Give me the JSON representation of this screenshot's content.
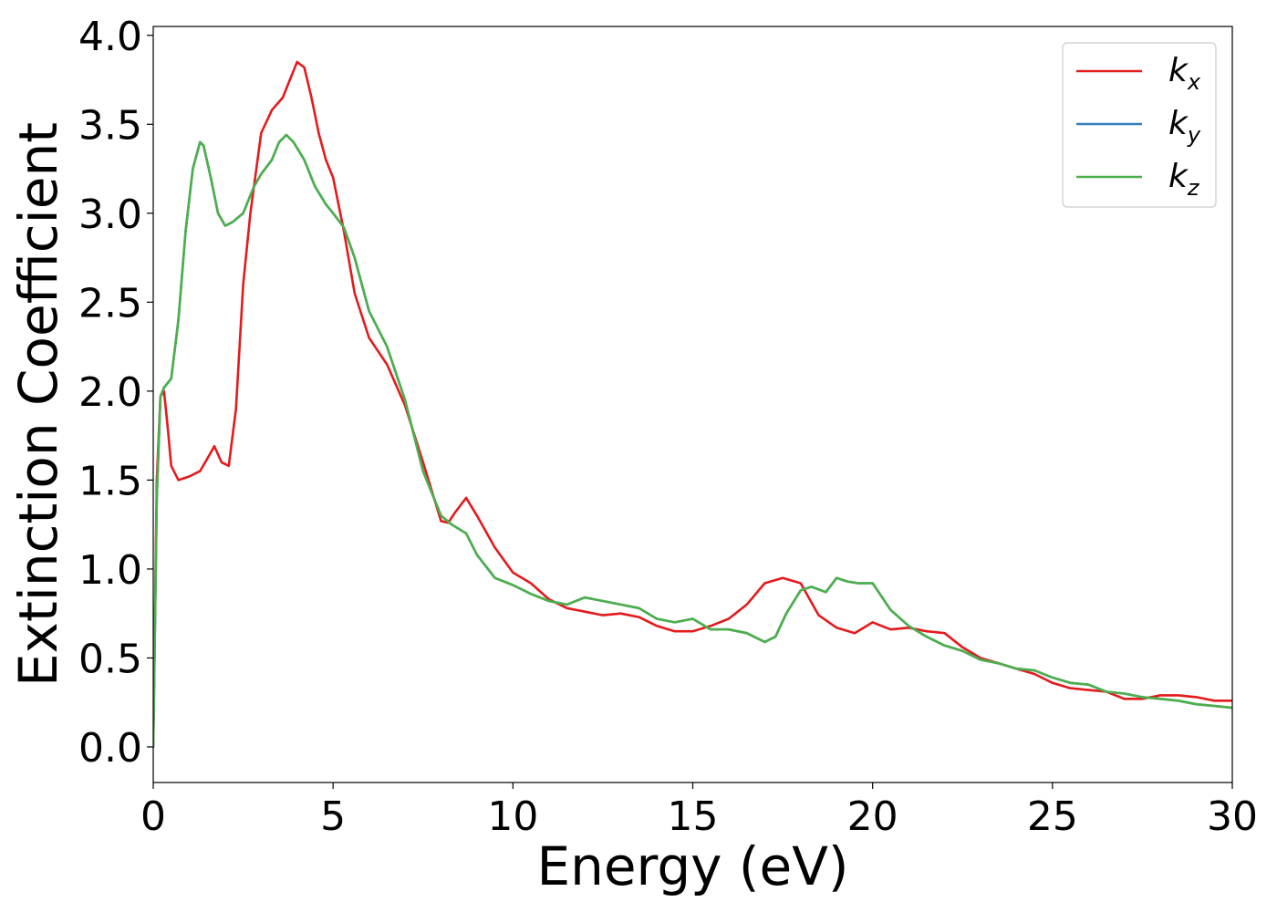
{
  "chart_data": {
    "type": "line",
    "xlabel": "Energy (eV)",
    "ylabel": "Extinction Coefficient",
    "xlim": [
      0,
      30
    ],
    "ylim": [
      -0.2,
      4.05
    ],
    "xticks": [
      0,
      5,
      10,
      15,
      20,
      25,
      30
    ],
    "yticks": [
      0.0,
      0.5,
      1.0,
      1.5,
      2.0,
      2.5,
      3.0,
      3.5,
      4.0
    ],
    "xtick_labels": [
      "0",
      "5",
      "10",
      "15",
      "20",
      "25",
      "30"
    ],
    "ytick_labels": [
      "0.0",
      "0.5",
      "1.0",
      "1.5",
      "2.0",
      "2.5",
      "3.0",
      "3.5",
      "4.0"
    ],
    "grid": false,
    "legend_position": "top-right",
    "series": [
      {
        "name": "k",
        "sub": "x",
        "color": "#e41a1c",
        "x": [
          0,
          0.1,
          0.2,
          0.3,
          0.4,
          0.5,
          0.7,
          1.0,
          1.3,
          1.5,
          1.7,
          1.9,
          2.1,
          2.3,
          2.5,
          2.7,
          3.0,
          3.3,
          3.6,
          3.8,
          4.0,
          4.2,
          4.4,
          4.6,
          4.8,
          5.0,
          5.3,
          5.6,
          6.0,
          6.5,
          7.0,
          7.5,
          8.0,
          8.2,
          8.4,
          8.7,
          9.0,
          9.5,
          10.0,
          10.5,
          11.0,
          11.5,
          12.0,
          12.5,
          13.0,
          13.5,
          14.0,
          14.5,
          15.0,
          15.5,
          16.0,
          16.5,
          17.0,
          17.5,
          18.0,
          18.5,
          19.0,
          19.5,
          20.0,
          20.5,
          21.0,
          21.5,
          22.0,
          22.5,
          23.0,
          23.5,
          24.0,
          24.5,
          25.0,
          25.5,
          26.0,
          26.5,
          27.0,
          27.5,
          28.0,
          28.5,
          29.0,
          29.5,
          30.0
        ],
        "y": [
          0.0,
          1.5,
          1.97,
          2.0,
          1.8,
          1.58,
          1.5,
          1.52,
          1.55,
          1.62,
          1.69,
          1.6,
          1.58,
          1.9,
          2.6,
          3.0,
          3.45,
          3.58,
          3.65,
          3.75,
          3.85,
          3.82,
          3.65,
          3.45,
          3.3,
          3.2,
          2.9,
          2.55,
          2.3,
          2.15,
          1.92,
          1.6,
          1.27,
          1.26,
          1.32,
          1.4,
          1.3,
          1.12,
          0.98,
          0.92,
          0.83,
          0.78,
          0.76,
          0.74,
          0.75,
          0.73,
          0.68,
          0.65,
          0.65,
          0.68,
          0.72,
          0.8,
          0.92,
          0.95,
          0.92,
          0.74,
          0.67,
          0.64,
          0.7,
          0.66,
          0.67,
          0.65,
          0.64,
          0.56,
          0.5,
          0.47,
          0.44,
          0.41,
          0.36,
          0.33,
          0.32,
          0.31,
          0.27,
          0.27,
          0.29,
          0.29,
          0.28,
          0.26,
          0.26
        ]
      },
      {
        "name": "k",
        "sub": "y",
        "color": "#377eb8",
        "x": [
          0,
          0.1,
          0.2,
          0.3,
          0.5,
          0.7,
          0.9,
          1.1,
          1.3,
          1.4,
          1.6,
          1.8,
          2.0,
          2.2,
          2.5,
          2.8,
          3.0,
          3.3,
          3.5,
          3.7,
          3.9,
          4.2,
          4.5,
          4.8,
          5.0,
          5.3,
          5.6,
          6.0,
          6.5,
          7.0,
          7.5,
          8.0,
          8.3,
          8.7,
          9.0,
          9.5,
          10.0,
          10.5,
          11.0,
          11.5,
          12.0,
          12.5,
          13.0,
          13.5,
          14.0,
          14.5,
          15.0,
          15.5,
          16.0,
          16.5,
          17.0,
          17.3,
          17.6,
          18.0,
          18.3,
          18.7,
          19.0,
          19.3,
          19.6,
          20.0,
          20.5,
          21.0,
          21.5,
          22.0,
          22.5,
          23.0,
          23.5,
          24.0,
          24.5,
          25.0,
          25.5,
          26.0,
          26.5,
          27.0,
          27.5,
          28.0,
          28.5,
          29.0,
          29.5,
          30.0
        ],
        "y": [
          0.0,
          1.4,
          1.97,
          2.02,
          2.07,
          2.4,
          2.9,
          3.25,
          3.4,
          3.38,
          3.2,
          3.0,
          2.93,
          2.95,
          3.0,
          3.15,
          3.22,
          3.3,
          3.4,
          3.44,
          3.4,
          3.3,
          3.15,
          3.05,
          3.0,
          2.92,
          2.75,
          2.45,
          2.25,
          1.95,
          1.55,
          1.3,
          1.25,
          1.2,
          1.08,
          0.95,
          0.91,
          0.86,
          0.82,
          0.8,
          0.84,
          0.82,
          0.8,
          0.78,
          0.72,
          0.7,
          0.72,
          0.66,
          0.66,
          0.64,
          0.59,
          0.62,
          0.75,
          0.88,
          0.9,
          0.87,
          0.95,
          0.93,
          0.92,
          0.92,
          0.77,
          0.68,
          0.62,
          0.57,
          0.54,
          0.49,
          0.47,
          0.44,
          0.43,
          0.39,
          0.36,
          0.35,
          0.31,
          0.3,
          0.28,
          0.27,
          0.26,
          0.24,
          0.23,
          0.22
        ]
      },
      {
        "name": "k",
        "sub": "z",
        "color": "#4daf4a",
        "x": [
          0,
          0.1,
          0.2,
          0.3,
          0.5,
          0.7,
          0.9,
          1.1,
          1.3,
          1.4,
          1.6,
          1.8,
          2.0,
          2.2,
          2.5,
          2.8,
          3.0,
          3.3,
          3.5,
          3.7,
          3.9,
          4.2,
          4.5,
          4.8,
          5.0,
          5.3,
          5.6,
          6.0,
          6.5,
          7.0,
          7.5,
          8.0,
          8.3,
          8.7,
          9.0,
          9.5,
          10.0,
          10.5,
          11.0,
          11.5,
          12.0,
          12.5,
          13.0,
          13.5,
          14.0,
          14.5,
          15.0,
          15.5,
          16.0,
          16.5,
          17.0,
          17.3,
          17.6,
          18.0,
          18.3,
          18.7,
          19.0,
          19.3,
          19.6,
          20.0,
          20.5,
          21.0,
          21.5,
          22.0,
          22.5,
          23.0,
          23.5,
          24.0,
          24.5,
          25.0,
          25.5,
          26.0,
          26.5,
          27.0,
          27.5,
          28.0,
          28.5,
          29.0,
          29.5,
          30.0
        ],
        "y": [
          0.0,
          1.4,
          1.97,
          2.02,
          2.07,
          2.4,
          2.9,
          3.25,
          3.4,
          3.38,
          3.2,
          3.0,
          2.93,
          2.95,
          3.0,
          3.15,
          3.22,
          3.3,
          3.4,
          3.44,
          3.4,
          3.3,
          3.15,
          3.05,
          3.0,
          2.92,
          2.75,
          2.45,
          2.25,
          1.95,
          1.55,
          1.3,
          1.25,
          1.2,
          1.08,
          0.95,
          0.91,
          0.86,
          0.82,
          0.8,
          0.84,
          0.82,
          0.8,
          0.78,
          0.72,
          0.7,
          0.72,
          0.66,
          0.66,
          0.64,
          0.59,
          0.62,
          0.75,
          0.88,
          0.9,
          0.87,
          0.95,
          0.93,
          0.92,
          0.92,
          0.77,
          0.68,
          0.62,
          0.57,
          0.54,
          0.49,
          0.47,
          0.44,
          0.43,
          0.39,
          0.36,
          0.35,
          0.31,
          0.3,
          0.28,
          0.27,
          0.26,
          0.24,
          0.23,
          0.22
        ]
      }
    ]
  }
}
